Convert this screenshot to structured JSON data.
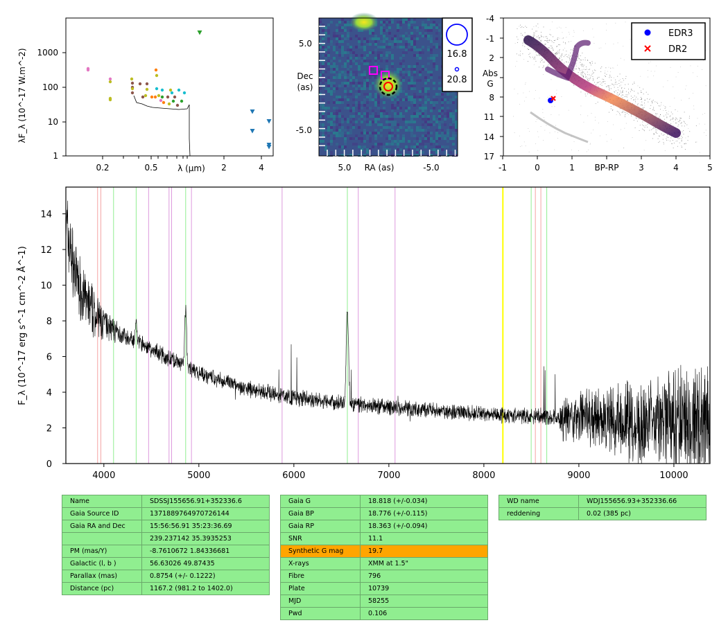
{
  "sed": {
    "ylabel": "λF_λ (10^-17 W.m^-2)",
    "xlabel": "λ (μm)",
    "yticks": [
      "1",
      "10",
      "100",
      "1000"
    ],
    "xticks": [
      "0.2",
      "0.5",
      "2",
      "4"
    ],
    "colors": {
      "pink": "#e377c2",
      "olive": "#bcbd22",
      "brown": "#8c564b",
      "orange": "#ff7f0e",
      "green": "#2ca02c",
      "cyan": "#17becf",
      "blue": "#1f77b4"
    }
  },
  "cutout": {
    "xlabel": "RA (as)",
    "ylabel_lines": [
      "Dec",
      "(as)"
    ],
    "xticks": [
      "5.0",
      "-5.0"
    ],
    "yticks": [
      "5.0",
      "-5.0"
    ],
    "legend": [
      "16.8",
      "20.8"
    ]
  },
  "cmd": {
    "xlabel": "BP-RP",
    "ylabel_lines": [
      "Abs",
      "G"
    ],
    "xticks": [
      "-1",
      "0",
      "1",
      "3",
      "4",
      "5"
    ],
    "yticks": [
      "-4",
      "-1",
      "2",
      "5",
      "8",
      "11",
      "14",
      "17"
    ],
    "legend": [
      {
        "label": "EDR3",
        "color": "#0000ff"
      },
      {
        "label": "DR2",
        "color": "#ff0000"
      }
    ]
  },
  "chart_data": {
    "type": "line",
    "ylabel": "F_λ (10^-17 erg s^-1 cm^-2 Å^-1)",
    "xlim": [
      3600,
      10380
    ],
    "ylim": [
      0,
      15.5
    ],
    "xticks": [
      "4000",
      "5000",
      "6000",
      "7000",
      "8000",
      "9000",
      "10000"
    ],
    "yticks": [
      "0",
      "2",
      "4",
      "6",
      "8",
      "10",
      "12",
      "14"
    ],
    "continuum": [
      {
        "x": 3600,
        "y": 13.5
      },
      {
        "x": 3700,
        "y": 10.5
      },
      {
        "x": 3800,
        "y": 9.2
      },
      {
        "x": 3900,
        "y": 8.4
      },
      {
        "x": 4000,
        "y": 7.8
      },
      {
        "x": 4200,
        "y": 7.2
      },
      {
        "x": 4400,
        "y": 6.7
      },
      {
        "x": 4600,
        "y": 6.1
      },
      {
        "x": 4800,
        "y": 5.6
      },
      {
        "x": 5000,
        "y": 5.1
      },
      {
        "x": 5200,
        "y": 4.7
      },
      {
        "x": 5500,
        "y": 4.2
      },
      {
        "x": 6000,
        "y": 3.7
      },
      {
        "x": 6500,
        "y": 3.35
      },
      {
        "x": 7000,
        "y": 3.15
      },
      {
        "x": 7500,
        "y": 2.95
      },
      {
        "x": 8000,
        "y": 2.8
      },
      {
        "x": 8500,
        "y": 2.65
      },
      {
        "x": 9000,
        "y": 2.55
      },
      {
        "x": 9500,
        "y": 2.45
      },
      {
        "x": 10000,
        "y": 2.35
      },
      {
        "x": 10380,
        "y": 2.2
      }
    ],
    "emission_lines": [
      {
        "x": 4861,
        "y": 8.5,
        "w": 10
      },
      {
        "x": 6563,
        "y": 8.7,
        "w": 12
      },
      {
        "x": 4340,
        "y": 1.2,
        "w": 8
      }
    ],
    "line_markers": [
      {
        "x": 3934,
        "color": "#f4a3a3"
      },
      {
        "x": 3968,
        "color": "#f4a3a3"
      },
      {
        "x": 4102,
        "color": "#90ee90"
      },
      {
        "x": 4340,
        "color": "#90ee90"
      },
      {
        "x": 4471,
        "color": "#dd99dd"
      },
      {
        "x": 4686,
        "color": "#dd99dd"
      },
      {
        "x": 4713,
        "color": "#dd99dd"
      },
      {
        "x": 4861,
        "color": "#90ee90"
      },
      {
        "x": 4922,
        "color": "#dd99dd"
      },
      {
        "x": 5876,
        "color": "#dd99dd"
      },
      {
        "x": 6563,
        "color": "#90ee90"
      },
      {
        "x": 6678,
        "color": "#dd99dd"
      },
      {
        "x": 7065,
        "color": "#dd99dd"
      },
      {
        "x": 8200,
        "color": "#ffff00"
      },
      {
        "x": 8498,
        "color": "#90ee90"
      },
      {
        "x": 8542,
        "color": "#f4a3a3"
      },
      {
        "x": 8600,
        "color": "#f4a3a3"
      },
      {
        "x": 8662,
        "color": "#90ee90"
      }
    ]
  },
  "table1": [
    {
      "k": "Name",
      "v": "SDSSJ155656.91+352336.6"
    },
    {
      "k": "Gaia Source ID",
      "v": "1371889764970726144"
    },
    {
      "k": "Gaia RA and Dec",
      "v": "15:56:56.91    35:23:36.69"
    },
    {
      "k": "",
      "v": "239.237142    35.3935253"
    },
    {
      "k": "PM (mas/Y)",
      "v": "-8.7610672    1.84336681"
    },
    {
      "k": "Galactic (l, b )",
      "v": "56.63026    49.87435"
    },
    {
      "k": "Parallax (mas)",
      "v": "0.8754 (+/- 0.1222)"
    },
    {
      "k": "Distance (pc)",
      "v": "1167.2 (981.2 to 1402.0)"
    }
  ],
  "table2": [
    {
      "k": "Gaia G",
      "v": "18.818 (+/-0.034)"
    },
    {
      "k": "Gaia BP",
      "v": "18.776 (+/-0.115)"
    },
    {
      "k": "Gaia RP",
      "v": "18.363 (+/-0.094)"
    },
    {
      "k": "SNR",
      "v": "11.1"
    },
    {
      "k": "Synthetic G mag",
      "v": "19.7",
      "highlight": true
    },
    {
      "k": "X-rays",
      "v": "XMM at 1.5\""
    },
    {
      "k": "Fibre",
      "v": "796"
    },
    {
      "k": "Plate",
      "v": "10739"
    },
    {
      "k": "MJD",
      "v": "58255"
    },
    {
      "k": "Pwd",
      "v": "0.106"
    }
  ],
  "table3": [
    {
      "k": "WD name",
      "v": "WDJ155656.93+352336.66"
    },
    {
      "k": "reddening",
      "v": "0.02 (385 pc)"
    }
  ]
}
